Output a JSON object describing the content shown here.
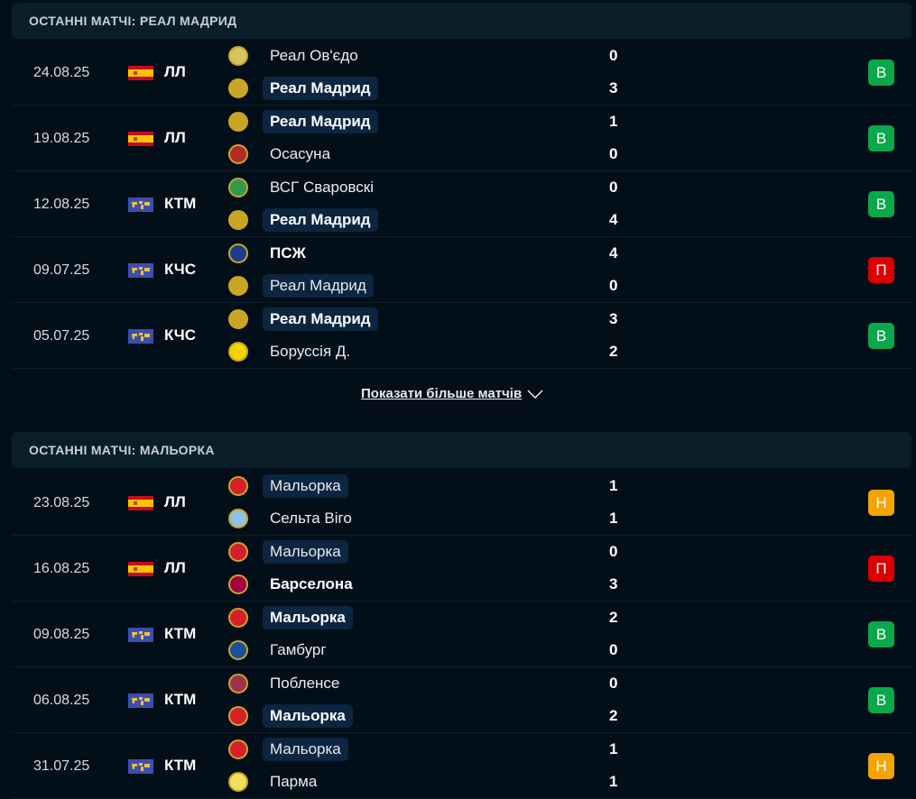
{
  "colors": {
    "win": "#0aa84a",
    "loss": "#dc0000",
    "draw": "#f5a300",
    "highlight": "#0c2540"
  },
  "sections": [
    {
      "title": "ОСТАННІ МАТЧІ: РЕАЛ МАДРИД",
      "show_more": "Показати більше матчів",
      "matches": [
        {
          "date": "24.08.25",
          "flag": "spain-flag",
          "league": "ЛЛ",
          "home": "Реал Ов'єдо",
          "away": "Реал Мадрид",
          "hs": "0",
          "as": "3",
          "result": "В",
          "res": "win",
          "bold": [
            false,
            true
          ],
          "hl": [
            false,
            true
          ],
          "logos": [
            "#d9c35b",
            "#c9a526"
          ]
        },
        {
          "date": "19.08.25",
          "flag": "spain-flag",
          "league": "ЛЛ",
          "home": "Реал Мадрид",
          "away": "Осасуна",
          "hs": "1",
          "as": "0",
          "result": "В",
          "res": "win",
          "bold": [
            true,
            false
          ],
          "hl": [
            true,
            false
          ],
          "logos": [
            "#c9a526",
            "#b22a2a"
          ]
        },
        {
          "date": "12.08.25",
          "flag": "world-flag",
          "league": "КТМ",
          "home": "ВСГ Сваровскі",
          "away": "Реал Мадрид",
          "hs": "0",
          "as": "4",
          "result": "В",
          "res": "win",
          "bold": [
            false,
            true
          ],
          "hl": [
            false,
            true
          ],
          "logos": [
            "#2e9a4f",
            "#c9a526"
          ]
        },
        {
          "date": "09.07.25",
          "flag": "world-flag",
          "league": "КЧС",
          "home": "ПСЖ",
          "away": "Реал Мадрид",
          "hs": "4",
          "as": "0",
          "result": "П",
          "res": "loss",
          "bold": [
            true,
            false
          ],
          "hl": [
            false,
            true
          ],
          "logos": [
            "#1d3d8c",
            "#c9a526"
          ]
        },
        {
          "date": "05.07.25",
          "flag": "world-flag",
          "league": "КЧС",
          "home": "Реал Мадрид",
          "away": "Боруссія Д.",
          "hs": "3",
          "as": "2",
          "result": "В",
          "res": "win",
          "bold": [
            true,
            false
          ],
          "hl": [
            true,
            false
          ],
          "logos": [
            "#c9a526",
            "#f2d500"
          ]
        }
      ]
    },
    {
      "title": "ОСТАННІ МАТЧІ: МАЛЬОРКА",
      "matches": [
        {
          "date": "23.08.25",
          "flag": "spain-flag",
          "league": "ЛЛ",
          "home": "Мальорка",
          "away": "Сельта Віго",
          "hs": "1",
          "as": "1",
          "result": "Н",
          "res": "draw",
          "bold": [
            false,
            false
          ],
          "hl": [
            true,
            false
          ],
          "logos": [
            "#d4202a",
            "#8fc3e8"
          ]
        },
        {
          "date": "16.08.25",
          "flag": "spain-flag",
          "league": "ЛЛ",
          "home": "Мальорка",
          "away": "Барселона",
          "hs": "0",
          "as": "3",
          "result": "П",
          "res": "loss",
          "bold": [
            false,
            true
          ],
          "hl": [
            true,
            false
          ],
          "logos": [
            "#d4202a",
            "#a50044"
          ]
        },
        {
          "date": "09.08.25",
          "flag": "world-flag",
          "league": "КТМ",
          "home": "Мальорка",
          "away": "Гамбург",
          "hs": "2",
          "as": "0",
          "result": "В",
          "res": "win",
          "bold": [
            true,
            false
          ],
          "hl": [
            true,
            false
          ],
          "logos": [
            "#d4202a",
            "#1b4fa0"
          ]
        },
        {
          "date": "06.08.25",
          "flag": "world-flag",
          "league": "КТМ",
          "home": "Побленсе",
          "away": "Мальорка",
          "hs": "0",
          "as": "2",
          "result": "В",
          "res": "win",
          "bold": [
            false,
            true
          ],
          "hl": [
            false,
            true
          ],
          "logos": [
            "#a03050",
            "#d4202a"
          ]
        },
        {
          "date": "31.07.25",
          "flag": "world-flag",
          "league": "КТМ",
          "home": "Мальорка",
          "away": "Парма",
          "hs": "1",
          "as": "1",
          "result": "Н",
          "res": "draw",
          "bold": [
            false,
            false
          ],
          "hl": [
            true,
            false
          ],
          "logos": [
            "#d4202a",
            "#f0e060"
          ]
        }
      ]
    }
  ]
}
